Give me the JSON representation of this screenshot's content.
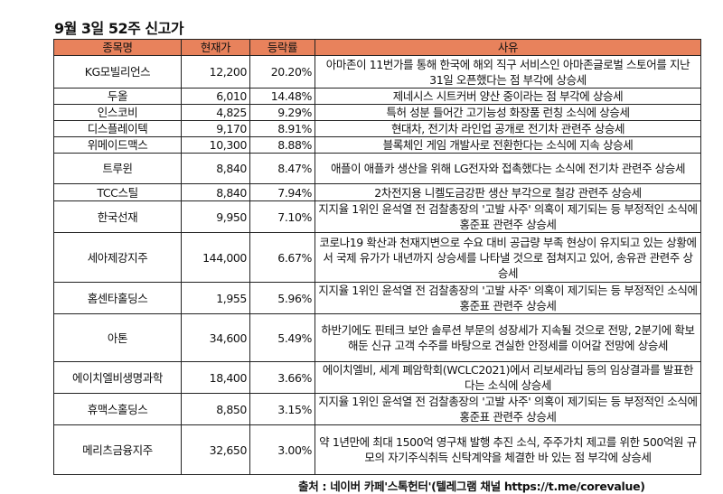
{
  "title": "9월 3일 52주 신고가",
  "headers": [
    "종목명",
    "현재가",
    "등락률",
    "사유"
  ],
  "rows": [
    {
      "name": "KG모빌리언스",
      "price": "12,200",
      "change": "20.20%",
      "reason": "아마존이 11번가를 통해 한국에 해외 직구 서비스인 아마존글로벌 스토어를 지난 31일 오픈했다는 점 부각에 상승세"
    },
    {
      "name": "두올",
      "price": "6,010",
      "change": "14.48%",
      "reason": "제네시스 시트커버 양산 중이라는 점 부각에 상승세"
    },
    {
      "name": "인스코비",
      "price": "4,825",
      "change": "9.29%",
      "reason": "특허 성분 들어간 고기능성 화장품 런칭 소식에 상승세"
    },
    {
      "name": "디스플레이텍",
      "price": "9,170",
      "change": "8.91%",
      "reason": "현대차, 전기차 라인업 공개로 전기차 관련주 상승세"
    },
    {
      "name": "위메이드맥스",
      "price": "10,300",
      "change": "8.88%",
      "reason": "블록체인 게임 개발사로 전환한다는 소식에 지속 상승세"
    },
    {
      "name": "트루윈",
      "price": "8,840",
      "change": "8.47%",
      "reason": "애플이 애플카 생산을 위해 LG전자와 접촉했다는 소식에 전기차 관련주 상승세"
    },
    {
      "name": "TCC스틸",
      "price": "8,840",
      "change": "7.94%",
      "reason": "2차전지용 니켈도금강판 생산 부각으로 철강 관련주 상승세"
    },
    {
      "name": "한국선재",
      "price": "9,950",
      "change": "7.10%",
      "reason": "지지율 1위인 윤석열 전 검찰총장의 '고발 사주' 의혹이 제기되는 등 부정적인 소식에 홍준표 관련주 상승세"
    },
    {
      "name": "세아제강지주",
      "price": "144,000",
      "change": "6.67%",
      "reason": "코로나19 확산과 천재지변으로 수요 대비 공급량 부족 현상이 유지되고 있는 상황에서 국제 유가가 내년까지 상승세를 나타낼 것으로 점쳐지고 있어, 송유관 관련주 상승세"
    },
    {
      "name": "홈센타홀딩스",
      "price": "1,955",
      "change": "5.96%",
      "reason": "지지율 1위인 윤석열 전 검찰총장의 '고발 사주' 의혹이 제기되는 등 부정적인 소식에 홍준표 관련주 상승세"
    },
    {
      "name": "아톤",
      "price": "34,600",
      "change": "5.49%",
      "reason": "하반기에도 핀테크 보안 솔루션 부문의 성장세가 지속될 것으로 전망, 2분기에 확보해둔 신규 고객 수주를 바탕으로 견실한 안정세를 이어갈 전망에 상승세"
    },
    {
      "name": "에이치엘비생명과학",
      "price": "18,400",
      "change": "3.66%",
      "reason": "에이치엘비, 세계 폐암학회(WCLC2021)에서 리보세라닙 등의 임상결과를 발표한다는 소식에 상승세"
    },
    {
      "name": "휴맥스홀딩스",
      "price": "8,850",
      "change": "3.15%",
      "reason": "지지율 1위인 윤석열 전 검찰총장의 '고발 사주' 의혹이 제기되는 등 부정적인 소식에 홍준표 관련주 상승세"
    },
    {
      "name": "메리츠금융지주",
      "price": "32,650",
      "change": "3.00%",
      "reason": "약 1년만에 최대 1500억 영구채 발행 추진 소식, 주주가치 제고를 위한 500억원 규모의 자기주식취득 신탁계약을 체결한 바 있는 점 부각에 상승세"
    }
  ],
  "source": "출처 : 네이버 카페'스톡헌터'(텔레그램 채널 https://t.me/corevalue)",
  "colors": {
    "header_bg": "#E8825C"
  }
}
